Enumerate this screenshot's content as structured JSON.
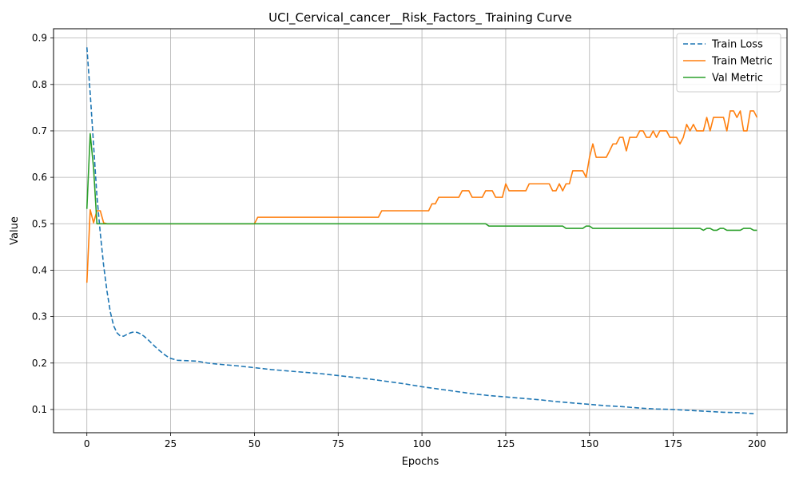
{
  "chart_data": {
    "type": "line",
    "title": "UCI_Cervical_cancer__Risk_Factors_ Training Curve",
    "xlabel": "Epochs",
    "ylabel": "Value",
    "xlim": [
      -9.95,
      208.95
    ],
    "ylim": [
      0.05,
      0.92
    ],
    "xticks": [
      0,
      25,
      50,
      75,
      100,
      125,
      150,
      175,
      200
    ],
    "yticks": [
      0.1,
      0.2,
      0.3,
      0.4,
      0.5,
      0.6,
      0.7,
      0.8,
      0.9
    ],
    "grid": true,
    "legend_position": "top-right",
    "series": [
      {
        "name": "Train Loss",
        "color": "#1f77b4",
        "dash": "dashed",
        "points": [
          [
            0,
            0.88
          ],
          [
            1,
            0.78
          ],
          [
            2,
            0.67
          ],
          [
            3,
            0.56
          ],
          [
            4,
            0.48
          ],
          [
            5,
            0.41
          ],
          [
            6,
            0.355
          ],
          [
            7,
            0.31
          ],
          [
            8,
            0.28
          ],
          [
            9,
            0.265
          ],
          [
            10,
            0.258
          ],
          [
            11,
            0.258
          ],
          [
            12,
            0.262
          ],
          [
            13,
            0.265
          ],
          [
            14,
            0.267
          ],
          [
            15,
            0.266
          ],
          [
            16,
            0.263
          ],
          [
            17,
            0.258
          ],
          [
            18,
            0.252
          ],
          [
            19,
            0.245
          ],
          [
            20,
            0.238
          ],
          [
            21,
            0.231
          ],
          [
            22,
            0.225
          ],
          [
            23,
            0.219
          ],
          [
            24,
            0.214
          ],
          [
            25,
            0.21
          ],
          [
            27,
            0.206
          ],
          [
            30,
            0.205
          ],
          [
            33,
            0.204
          ],
          [
            36,
            0.2
          ],
          [
            40,
            0.197
          ],
          [
            45,
            0.194
          ],
          [
            50,
            0.19
          ],
          [
            55,
            0.186
          ],
          [
            60,
            0.183
          ],
          [
            65,
            0.18
          ],
          [
            70,
            0.177
          ],
          [
            75,
            0.173
          ],
          [
            80,
            0.169
          ],
          [
            85,
            0.165
          ],
          [
            90,
            0.16
          ],
          [
            95,
            0.155
          ],
          [
            100,
            0.149
          ],
          [
            105,
            0.144
          ],
          [
            110,
            0.139
          ],
          [
            115,
            0.134
          ],
          [
            120,
            0.13
          ],
          [
            125,
            0.127
          ],
          [
            130,
            0.124
          ],
          [
            135,
            0.121
          ],
          [
            140,
            0.117
          ],
          [
            145,
            0.114
          ],
          [
            150,
            0.111
          ],
          [
            155,
            0.108
          ],
          [
            160,
            0.106
          ],
          [
            165,
            0.103
          ],
          [
            170,
            0.101
          ],
          [
            175,
            0.1
          ],
          [
            180,
            0.098
          ],
          [
            185,
            0.096
          ],
          [
            190,
            0.094
          ],
          [
            195,
            0.093
          ],
          [
            199,
            0.091
          ]
        ]
      },
      {
        "name": "Train Metric",
        "color": "#ff7f0e",
        "dash": "solid",
        "points": [
          [
            0,
            0.373
          ],
          [
            1,
            0.53
          ],
          [
            2,
            0.502
          ],
          [
            3,
            0.528
          ],
          [
            4,
            0.528
          ],
          [
            5,
            0.502
          ],
          [
            6,
            0.5
          ],
          [
            50,
            0.5
          ],
          [
            51,
            0.514
          ],
          [
            87,
            0.514
          ],
          [
            88,
            0.528
          ],
          [
            102,
            0.528
          ],
          [
            103,
            0.543
          ],
          [
            104,
            0.543
          ],
          [
            105,
            0.557
          ],
          [
            111,
            0.557
          ],
          [
            112,
            0.571
          ],
          [
            114,
            0.571
          ],
          [
            115,
            0.557
          ],
          [
            118,
            0.557
          ],
          [
            119,
            0.571
          ],
          [
            121,
            0.571
          ],
          [
            122,
            0.557
          ],
          [
            124,
            0.557
          ],
          [
            125,
            0.586
          ],
          [
            126,
            0.571
          ],
          [
            131,
            0.571
          ],
          [
            132,
            0.586
          ],
          [
            138,
            0.586
          ],
          [
            139,
            0.571
          ],
          [
            140,
            0.571
          ],
          [
            141,
            0.586
          ],
          [
            142,
            0.571
          ],
          [
            143,
            0.586
          ],
          [
            144,
            0.586
          ],
          [
            145,
            0.614
          ],
          [
            148,
            0.614
          ],
          [
            149,
            0.6
          ],
          [
            150,
            0.643
          ],
          [
            151,
            0.672
          ],
          [
            152,
            0.643
          ],
          [
            155,
            0.643
          ],
          [
            156,
            0.657
          ],
          [
            157,
            0.672
          ],
          [
            158,
            0.672
          ],
          [
            159,
            0.686
          ],
          [
            160,
            0.686
          ],
          [
            161,
            0.657
          ],
          [
            162,
            0.686
          ],
          [
            164,
            0.686
          ],
          [
            165,
            0.7
          ],
          [
            166,
            0.7
          ],
          [
            167,
            0.686
          ],
          [
            168,
            0.686
          ],
          [
            169,
            0.7
          ],
          [
            170,
            0.686
          ],
          [
            171,
            0.7
          ],
          [
            173,
            0.7
          ],
          [
            174,
            0.686
          ],
          [
            176,
            0.686
          ],
          [
            177,
            0.672
          ],
          [
            178,
            0.686
          ],
          [
            179,
            0.714
          ],
          [
            180,
            0.7
          ],
          [
            181,
            0.714
          ],
          [
            182,
            0.7
          ],
          [
            184,
            0.7
          ],
          [
            185,
            0.729
          ],
          [
            186,
            0.7
          ],
          [
            187,
            0.729
          ],
          [
            190,
            0.729
          ],
          [
            191,
            0.7
          ],
          [
            192,
            0.743
          ],
          [
            193,
            0.743
          ],
          [
            194,
            0.729
          ],
          [
            195,
            0.743
          ],
          [
            196,
            0.7
          ],
          [
            197,
            0.7
          ],
          [
            198,
            0.743
          ],
          [
            199,
            0.743
          ],
          [
            200,
            0.729
          ]
        ]
      },
      {
        "name": "Val Metric",
        "color": "#2ca02c",
        "dash": "solid",
        "points": [
          [
            0,
            0.532
          ],
          [
            1,
            0.694
          ],
          [
            2,
            0.62
          ],
          [
            3,
            0.5
          ],
          [
            119,
            0.5
          ],
          [
            120,
            0.495
          ],
          [
            142,
            0.495
          ],
          [
            143,
            0.49
          ],
          [
            148,
            0.49
          ],
          [
            149,
            0.495
          ],
          [
            150,
            0.495
          ],
          [
            151,
            0.49
          ],
          [
            183,
            0.49
          ],
          [
            184,
            0.486
          ],
          [
            185,
            0.49
          ],
          [
            186,
            0.49
          ],
          [
            187,
            0.486
          ],
          [
            188,
            0.486
          ],
          [
            189,
            0.49
          ],
          [
            190,
            0.49
          ],
          [
            191,
            0.486
          ],
          [
            195,
            0.486
          ],
          [
            196,
            0.49
          ],
          [
            198,
            0.49
          ],
          [
            199,
            0.486
          ],
          [
            200,
            0.486
          ]
        ]
      }
    ]
  }
}
